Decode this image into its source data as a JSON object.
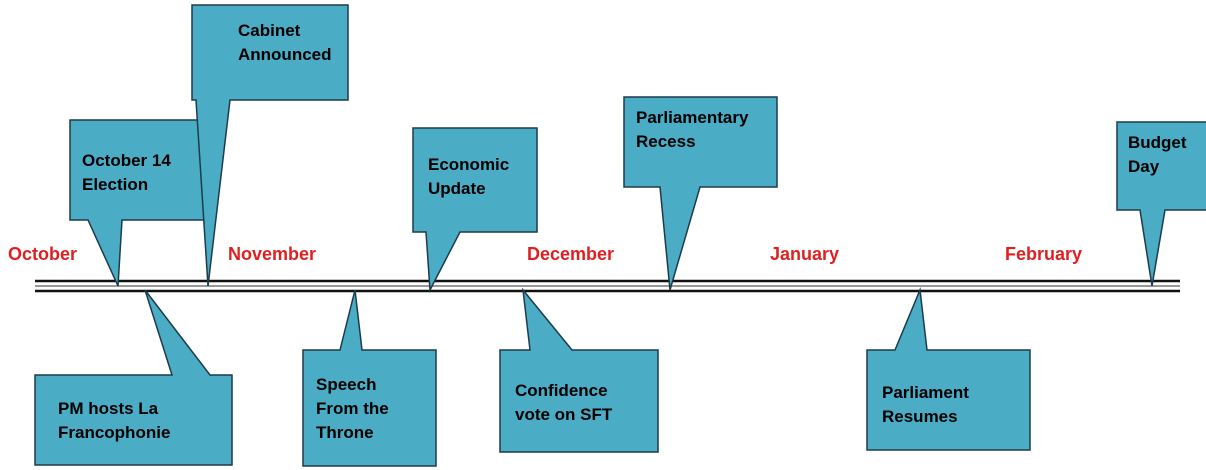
{
  "months": [
    "October",
    "November",
    "December",
    "January",
    "February"
  ],
  "events_above": [
    {
      "lines": [
        "October 14",
        "Election"
      ]
    },
    {
      "lines": [
        "Cabinet",
        "Announced"
      ]
    },
    {
      "lines": [
        "Economic",
        "Update"
      ]
    },
    {
      "lines": [
        "Parliamentary",
        "Recess"
      ]
    },
    {
      "lines": [
        "Budget",
        "Day"
      ]
    }
  ],
  "events_below": [
    {
      "lines": [
        "PM hosts La",
        "Francophonie"
      ]
    },
    {
      "lines": [
        "Speech",
        "From the",
        "Throne"
      ]
    },
    {
      "lines": [
        "Confidence",
        "vote on SFT"
      ]
    },
    {
      "lines": [
        "Parliament",
        "Resumes"
      ]
    }
  ]
}
